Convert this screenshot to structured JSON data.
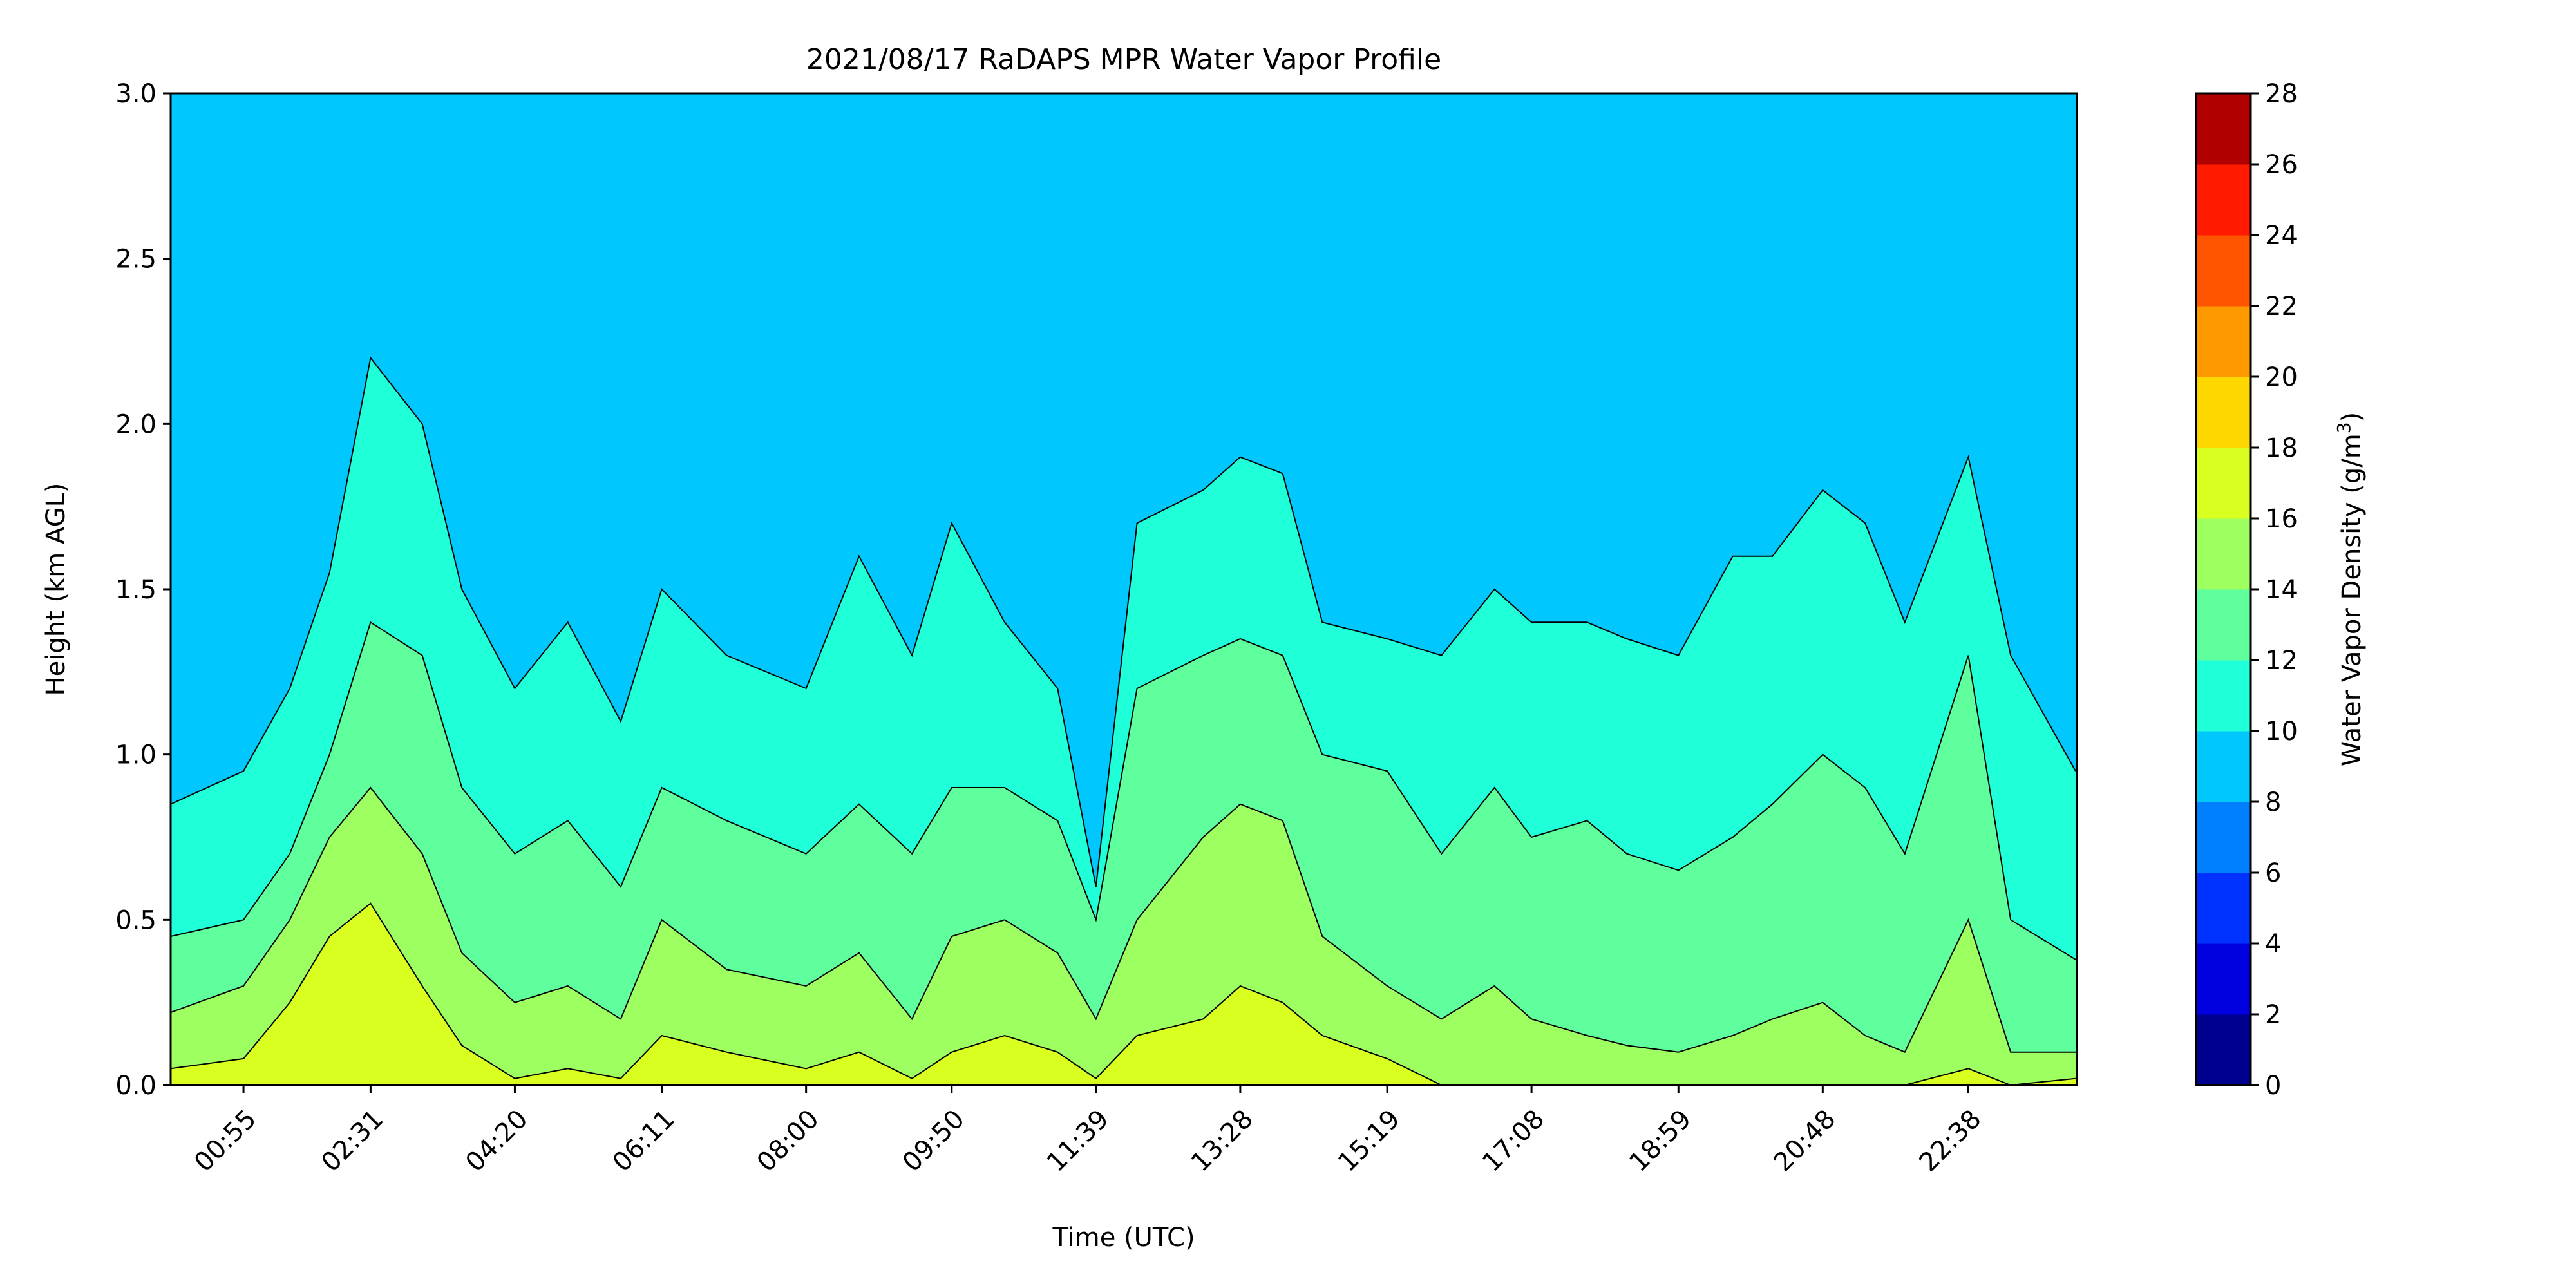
{
  "chart_data": {
    "type": "heatmap",
    "title": "2021/08/17 RaDAPS MPR Water Vapor Profile",
    "xlabel": "Time (UTC)",
    "ylabel": "Height (km AGL)",
    "x_tick_labels": [
      "00:55",
      "02:31",
      "04:20",
      "06:11",
      "08:00",
      "09:50",
      "11:39",
      "13:28",
      "15:19",
      "17:08",
      "18:59",
      "20:48",
      "22:38"
    ],
    "y_tick_labels": [
      "0.0",
      "0.5",
      "1.0",
      "1.5",
      "2.0",
      "2.5",
      "3.0"
    ],
    "ylim": [
      0,
      3.0
    ],
    "colorbar": {
      "label_main": "Water Vapor Density (g/m",
      "label_sup": "3",
      "label_close": ")",
      "levels": [
        0,
        2,
        4,
        6,
        8,
        10,
        12,
        14,
        16,
        18,
        20,
        22,
        24,
        26,
        28
      ],
      "tick_labels": [
        "0",
        "2",
        "4",
        "6",
        "8",
        "10",
        "12",
        "14",
        "16",
        "18",
        "20",
        "22",
        "24",
        "26",
        "28"
      ],
      "colors": [
        "#00008f",
        "#0000e0",
        "#0032ff",
        "#0080ff",
        "#00c8ff",
        "#1fffd8",
        "#60ff9d",
        "#9dff60",
        "#d8ff1f",
        "#ffd700",
        "#ff9900",
        "#ff5500",
        "#ff1a00",
        "#b00000"
      ]
    },
    "series": [
      {
        "name": "10 g/m³",
        "x": [
          "00:00",
          "00:55",
          "01:30",
          "02:00",
          "02:31",
          "03:10",
          "03:40",
          "04:20",
          "05:00",
          "05:40",
          "06:11",
          "07:00",
          "08:00",
          "08:40",
          "09:20",
          "09:50",
          "10:30",
          "11:10",
          "11:39",
          "12:10",
          "13:00",
          "13:28",
          "14:00",
          "14:30",
          "15:19",
          "16:00",
          "16:40",
          "17:08",
          "17:50",
          "18:20",
          "18:59",
          "19:40",
          "20:10",
          "20:48",
          "21:20",
          "21:50",
          "22:38",
          "23:10",
          "23:59"
        ],
        "y": [
          0.85,
          0.95,
          1.2,
          1.55,
          2.2,
          2.0,
          1.5,
          1.2,
          1.4,
          1.1,
          1.5,
          1.3,
          1.2,
          1.6,
          1.3,
          1.7,
          1.4,
          1.2,
          0.6,
          1.7,
          1.8,
          1.9,
          1.85,
          1.4,
          1.35,
          1.3,
          1.5,
          1.4,
          1.4,
          1.35,
          1.3,
          1.6,
          1.6,
          1.8,
          1.7,
          1.4,
          1.9,
          1.3,
          0.95
        ]
      },
      {
        "name": "12 g/m³",
        "x": [
          "00:00",
          "00:55",
          "01:30",
          "02:00",
          "02:31",
          "03:10",
          "03:40",
          "04:20",
          "05:00",
          "05:40",
          "06:11",
          "07:00",
          "08:00",
          "08:40",
          "09:20",
          "09:50",
          "10:30",
          "11:10",
          "11:39",
          "12:10",
          "13:00",
          "13:28",
          "14:00",
          "14:30",
          "15:19",
          "16:00",
          "16:40",
          "17:08",
          "17:50",
          "18:20",
          "18:59",
          "19:40",
          "20:10",
          "20:48",
          "21:20",
          "21:50",
          "22:38",
          "23:10",
          "23:59"
        ],
        "y": [
          0.45,
          0.5,
          0.7,
          1.0,
          1.4,
          1.3,
          0.9,
          0.7,
          0.8,
          0.6,
          0.9,
          0.8,
          0.7,
          0.85,
          0.7,
          0.9,
          0.9,
          0.8,
          0.5,
          1.2,
          1.3,
          1.35,
          1.3,
          1.0,
          0.95,
          0.7,
          0.9,
          0.75,
          0.8,
          0.7,
          0.65,
          0.75,
          0.85,
          1.0,
          0.9,
          0.7,
          1.3,
          0.5,
          0.38
        ]
      },
      {
        "name": "14 g/m³",
        "x": [
          "00:00",
          "00:55",
          "01:30",
          "02:00",
          "02:31",
          "03:10",
          "03:40",
          "04:20",
          "05:00",
          "05:40",
          "06:11",
          "07:00",
          "08:00",
          "08:40",
          "09:20",
          "09:50",
          "10:30",
          "11:10",
          "11:39",
          "12:10",
          "13:00",
          "13:28",
          "14:00",
          "14:30",
          "15:19",
          "16:00",
          "16:40",
          "17:08",
          "17:50",
          "18:20",
          "18:59",
          "19:40",
          "20:10",
          "20:48",
          "21:20",
          "21:50",
          "22:38",
          "23:10",
          "23:59"
        ],
        "y": [
          0.22,
          0.3,
          0.5,
          0.75,
          0.9,
          0.7,
          0.4,
          0.25,
          0.3,
          0.2,
          0.5,
          0.35,
          0.3,
          0.4,
          0.2,
          0.45,
          0.5,
          0.4,
          0.2,
          0.5,
          0.75,
          0.85,
          0.8,
          0.45,
          0.3,
          0.2,
          0.3,
          0.2,
          0.15,
          0.12,
          0.1,
          0.15,
          0.2,
          0.25,
          0.15,
          0.1,
          0.5,
          0.1,
          0.1
        ]
      },
      {
        "name": "16 g/m³",
        "x": [
          "00:00",
          "00:55",
          "01:30",
          "02:00",
          "02:31",
          "03:10",
          "03:40",
          "04:20",
          "05:00",
          "05:40",
          "06:11",
          "07:00",
          "08:00",
          "08:40",
          "09:20",
          "09:50",
          "10:30",
          "11:10",
          "11:39",
          "12:10",
          "13:00",
          "13:28",
          "14:00",
          "14:30",
          "15:19",
          "16:00",
          "16:40",
          "17:08",
          "17:50",
          "18:20",
          "18:59",
          "19:40",
          "20:10",
          "20:48",
          "21:20",
          "21:50",
          "22:38",
          "23:10",
          "23:59"
        ],
        "y": [
          0.05,
          0.08,
          0.25,
          0.45,
          0.55,
          0.3,
          0.12,
          0.02,
          0.05,
          0.02,
          0.15,
          0.1,
          0.05,
          0.1,
          0.02,
          0.1,
          0.15,
          0.1,
          0.02,
          0.15,
          0.2,
          0.3,
          0.25,
          0.15,
          0.08,
          0.0,
          0.0,
          0.0,
          0.0,
          0.0,
          0.0,
          0.0,
          0.0,
          0.0,
          0.0,
          0.0,
          0.05,
          0.0,
          0.02
        ]
      }
    ]
  }
}
